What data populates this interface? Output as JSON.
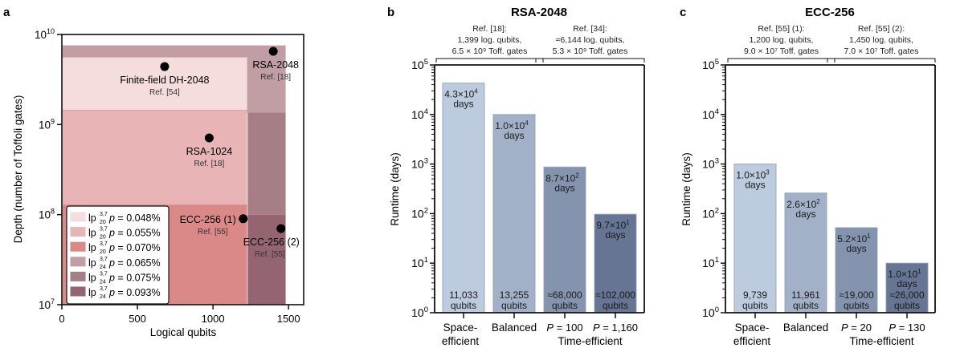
{
  "chart_data": [
    {
      "panel": "a",
      "type": "scatter",
      "title": "",
      "xlabel": "Logical qubits",
      "ylabel": "Depth (number of Toffoli gates)",
      "xlim": [
        0,
        1600
      ],
      "ylim_log10": [
        7,
        10
      ],
      "yscale": "log",
      "x_ticks": [
        0,
        500,
        1000,
        1500
      ],
      "y_ticks": [
        {
          "exp": 7,
          "label": "10",
          "sup": "7"
        },
        {
          "exp": 8,
          "label": "10",
          "sup": "8"
        },
        {
          "exp": 9,
          "label": "10",
          "sup": "9"
        },
        {
          "exp": 10,
          "label": "10",
          "sup": "10"
        }
      ],
      "regions": [
        {
          "name": "lp24 p=0.065%",
          "color": "#c09ea3",
          "x": [
            0,
            1480
          ],
          "y": [
            1350000000.0,
            7500000000.0
          ]
        },
        {
          "name": "lp20 p=0.048%",
          "color": "#f5dcdd",
          "x": [
            0,
            1225
          ],
          "y": [
            1440000000.0,
            5600000000.0
          ]
        },
        {
          "name": "lp24 p=0.075%",
          "color": "#a67e86",
          "x": [
            1225,
            1480
          ],
          "y": [
            100000000.0,
            1350000000.0
          ]
        },
        {
          "name": "lp20 p=0.055%",
          "color": "#e8b4b5",
          "x": [
            0,
            1225
          ],
          "y": [
            128000000.0,
            1440000000.0
          ]
        },
        {
          "name": "lp24 p=0.093%",
          "color": "#946570",
          "x": [
            1225,
            1480
          ],
          "y": [
            10000000.0,
            100000000.0
          ]
        },
        {
          "name": "lp20 p=0.070%",
          "color": "#db8889",
          "x": [
            0,
            1225
          ],
          "y": [
            10000000.0,
            128000000.0
          ]
        }
      ],
      "points": [
        {
          "label": "Finite-field DH-2048",
          "ref": "Ref. [54]",
          "x": 680,
          "y": 4400000000.0,
          "anchor": "below"
        },
        {
          "label": "RSA-2048",
          "ref": "Ref. [18]",
          "x": 1399,
          "y": 6500000000.0,
          "anchor": "below"
        },
        {
          "label": "RSA-1024",
          "ref": "Ref. [18]",
          "x": 975,
          "y": 710000000.0,
          "anchor": "below"
        },
        {
          "label": "ECC-256 (1)",
          "ref": "Ref. [55]",
          "x": 1200,
          "y": 90000000.0,
          "anchor": "left"
        },
        {
          "label": "ECC-256 (2)",
          "ref": "Ref. [55]",
          "x": 1450,
          "y": 70000000.0,
          "anchor": "below"
        }
      ],
      "legend": {
        "placement": "bottom-left",
        "entries": [
          {
            "base": "lp",
            "sub": "20",
            "sup": "3,7",
            "p": "p",
            "value": " = 0.048%",
            "color": "#f5dcdd"
          },
          {
            "base": "lp",
            "sub": "20",
            "sup": "3,7",
            "p": "p",
            "value": " = 0.055%",
            "color": "#e8b4b5"
          },
          {
            "base": "lp",
            "sub": "20",
            "sup": "3,7",
            "p": "p",
            "value": " = 0.070%",
            "color": "#db8889"
          },
          {
            "base": "lp",
            "sub": "24",
            "sup": "3,7",
            "p": "p",
            "value": " = 0.065%",
            "color": "#c09ea3"
          },
          {
            "base": "lp",
            "sub": "24",
            "sup": "3,7",
            "p": "p",
            "value": " = 0.075%",
            "color": "#a67e86"
          },
          {
            "base": "lp",
            "sub": "24",
            "sup": "3,7",
            "p": "p",
            "value": " = 0.093%",
            "color": "#946570"
          }
        ]
      }
    },
    {
      "panel": "b",
      "type": "bar",
      "title": "RSA-2048",
      "ylabel": "Runtime (days)",
      "yscale": "log",
      "ylim_log10": [
        0,
        5
      ],
      "brackets": [
        {
          "lines": [
            "Ref. [18]:",
            "1,399 log. qubits,",
            "6.5 × 10⁹ Toff. gates"
          ],
          "bars": [
            0,
            1
          ]
        },
        {
          "lines": [
            "Ref. [34]:",
            "≈6,144 log. qubits,",
            "5.3 × 10⁹ Toff. gates"
          ],
          "bars": [
            2,
            3
          ]
        }
      ],
      "categories": [
        "Space-\nefficient",
        "Balanced",
        "P = 100",
        "P = 1,160"
      ],
      "category_group_label": "Time-efficient",
      "values": [
        43000,
        10000,
        870,
        97
      ],
      "bars": [
        {
          "value": 43000,
          "mant": "4.3×10",
          "exp": "4",
          "unit": "days",
          "qubits": "11,033",
          "qubits_unit": "qubits",
          "cat1": "Space-",
          "cat2": "efficient",
          "italic": false,
          "color": "#bccbde"
        },
        {
          "value": 10000,
          "mant": "1.0×10",
          "exp": "4",
          "unit": "days",
          "qubits": "13,255",
          "qubits_unit": "qubits",
          "cat1": "Balanced",
          "cat2": "",
          "italic": false,
          "color": "#a3b1c8"
        },
        {
          "value": 870,
          "mant": "8.7×10",
          "exp": "2",
          "unit": "days",
          "qubits": "≈68,000",
          "qubits_unit": "qubits",
          "cat1": "P",
          "catval": " = 100",
          "italic": true,
          "color": "#8594ae"
        },
        {
          "value": 97,
          "mant": "9.7×10",
          "exp": "1",
          "unit": "days",
          "qubits": "≈102,000",
          "qubits_unit": "qubits",
          "cat1": "P",
          "catval": " = 1,160",
          "italic": true,
          "color": "#657593"
        }
      ]
    },
    {
      "panel": "c",
      "type": "bar",
      "title": "ECC-256",
      "ylabel": "Runtime (days)",
      "yscale": "log",
      "ylim_log10": [
        0,
        5
      ],
      "brackets": [
        {
          "lines": [
            "Ref. [55] (1):",
            "1,200 log. qubits,",
            "9.0 × 10⁷ Toff. gates"
          ],
          "bars": [
            0,
            1
          ]
        },
        {
          "lines": [
            "Ref. [55] (2):",
            "1,450 log. qubits,",
            "7.0 × 10⁷ Toff. gates"
          ],
          "bars": [
            2,
            3
          ]
        }
      ],
      "categories": [
        "Space-\nefficient",
        "Balanced",
        "P = 20",
        "P = 130"
      ],
      "category_group_label": "Time-efficient",
      "values": [
        1000,
        260,
        52,
        10
      ],
      "bars": [
        {
          "value": 1000,
          "mant": "1.0×10",
          "exp": "3",
          "unit": "days",
          "qubits": "9,739",
          "qubits_unit": "qubits",
          "cat1": "Space-",
          "cat2": "efficient",
          "italic": false,
          "color": "#bccbde"
        },
        {
          "value": 260,
          "mant": "2.6×10",
          "exp": "2",
          "unit": "days",
          "qubits": "11,961",
          "qubits_unit": "qubits",
          "cat1": "Balanced",
          "cat2": "",
          "italic": false,
          "color": "#a3b1c8"
        },
        {
          "value": 52,
          "mant": "5.2×10",
          "exp": "1",
          "unit": "days",
          "qubits": "≈19,000",
          "qubits_unit": "qubits",
          "cat1": "P",
          "catval": " = 20",
          "italic": true,
          "color": "#8594ae"
        },
        {
          "value": 10,
          "mant": "1.0×10",
          "exp": "1",
          "unit": "days",
          "qubits": "≈26,000",
          "qubits_unit": "qubits",
          "cat1": "P",
          "catval": " = 130",
          "italic": true,
          "color": "#657593"
        }
      ]
    }
  ],
  "panel_letters": {
    "a": "a",
    "b": "b",
    "c": "c"
  },
  "tick_base": "10"
}
